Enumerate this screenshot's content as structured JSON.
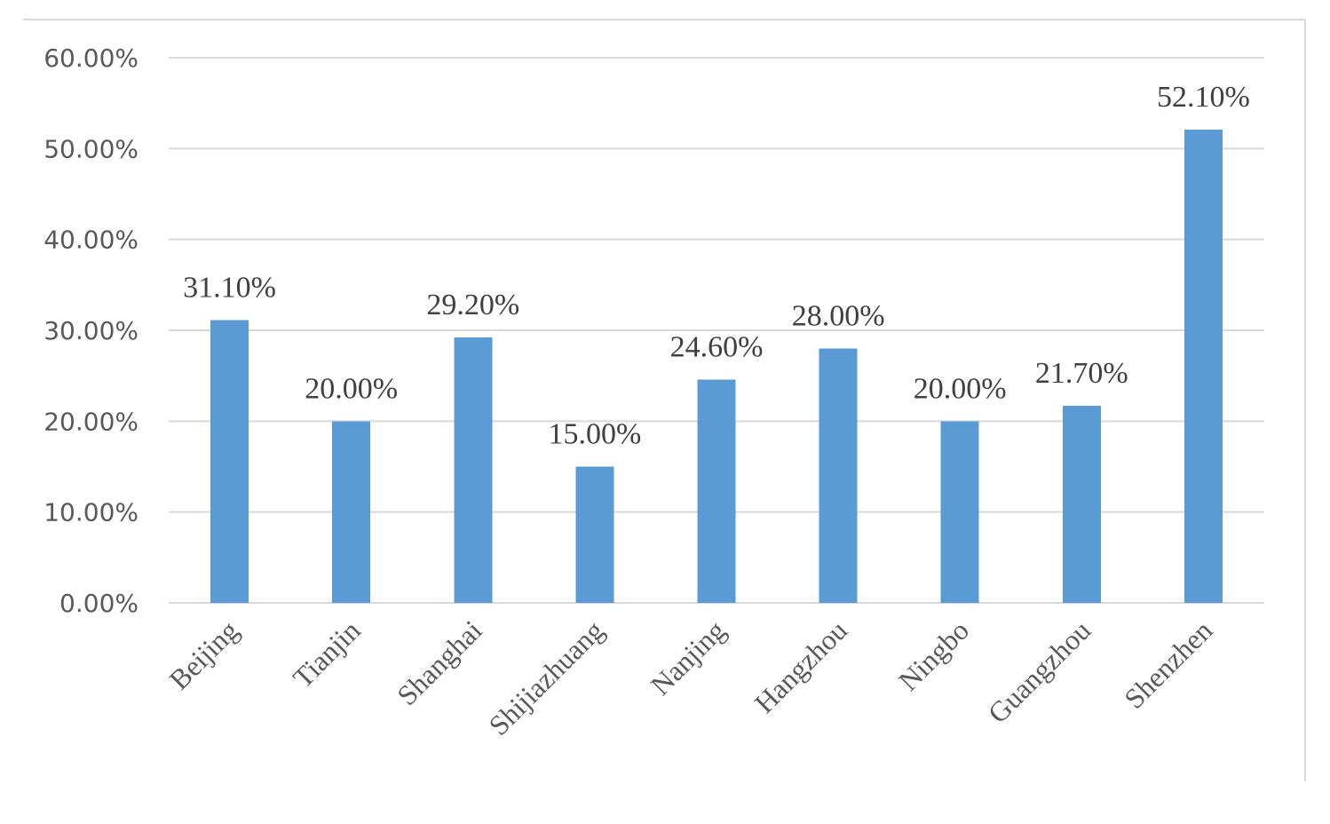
{
  "chart_data": {
    "type": "bar",
    "title": "",
    "xlabel": "",
    "ylabel": "",
    "categories": [
      "Beijing",
      "Tianjin",
      "Shanghai",
      "Shijiazhuang",
      "Nanjing",
      "Hangzhou",
      "Ningbo",
      "Guangzhou",
      "Shenzhen"
    ],
    "values": [
      31.1,
      20.0,
      29.2,
      15.0,
      24.6,
      28.0,
      20.0,
      21.7,
      52.1
    ],
    "data_labels": [
      "31.10%",
      "20.00%",
      "29.20%",
      "15.00%",
      "24.60%",
      "28.00%",
      "20.00%",
      "21.70%",
      "52.10%"
    ],
    "ylim": [
      0,
      60
    ],
    "yticks": [
      0,
      10,
      20,
      30,
      40,
      50,
      60
    ],
    "ytick_labels": [
      "0.00%",
      "10.00%",
      "20.00%",
      "30.00%",
      "40.00%",
      "50.00%",
      "60.00%"
    ],
    "grid": true,
    "legend": "none",
    "bar_color": "#5b9bd5"
  }
}
